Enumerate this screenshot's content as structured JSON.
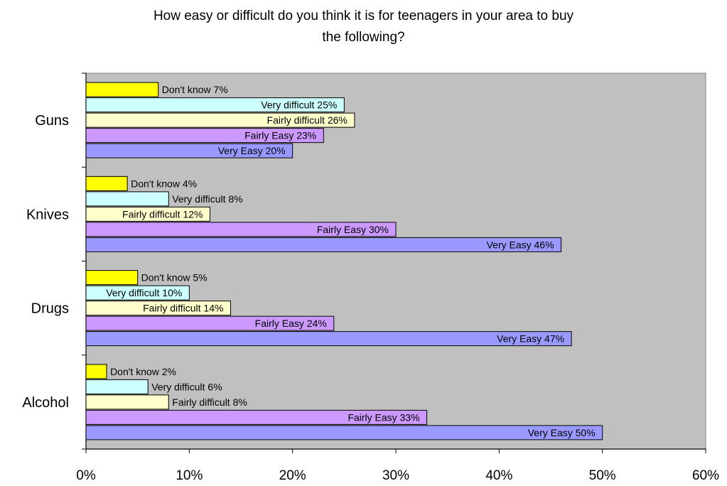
{
  "chart_data": {
    "type": "bar",
    "orientation": "horizontal",
    "title_lines": [
      "How easy or difficult do you think it is for teenagers in your area to buy",
      "the following?"
    ],
    "categories": [
      "Guns",
      "Knives",
      "Drugs",
      "Alcohol"
    ],
    "series": [
      {
        "name": "Don't know",
        "label_text": "Don't know",
        "color": "#FFFF00",
        "values": [
          7,
          4,
          5,
          2
        ]
      },
      {
        "name": "Very difficult",
        "label_text": "Very difficult",
        "color": "#CCFFFF",
        "values": [
          25,
          8,
          10,
          6
        ]
      },
      {
        "name": "Fairly difficult",
        "label_text": "Fairly difficult",
        "color": "#FFFFCC",
        "values": [
          26,
          12,
          14,
          8
        ]
      },
      {
        "name": "Fairly Easy",
        "label_text": "Fairly Easy",
        "color": "#CC99FF",
        "values": [
          23,
          30,
          24,
          33
        ]
      },
      {
        "name": "Very Easy",
        "label_text": "Very Easy",
        "color": "#9999FF",
        "values": [
          20,
          46,
          47,
          50
        ]
      }
    ],
    "xlim": [
      0,
      60
    ],
    "xticks": [
      "0%",
      "10%",
      "20%",
      "30%",
      "40%",
      "50%",
      "60%"
    ],
    "xtick_values": [
      0,
      10,
      20,
      30,
      40,
      50,
      60
    ],
    "value_suffix": "%",
    "plot_background": "#C0C0C0",
    "grid": false,
    "legend": "none"
  }
}
